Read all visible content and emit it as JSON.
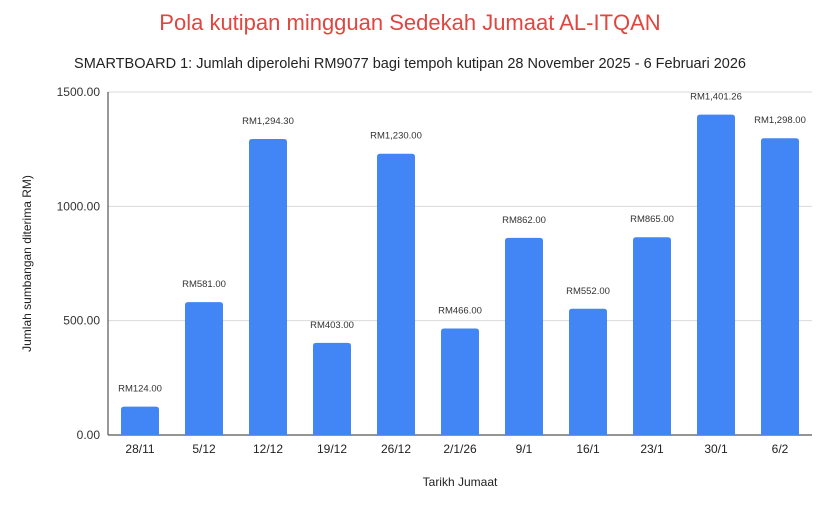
{
  "chart_data": {
    "type": "bar",
    "title": "Pola kutipan mingguan Sedekah Jumaat AL-ITQAN",
    "subtitle": "SMARTBOARD 1: Jumlah diperolehi RM9077 bagi tempoh kutipan 28 November 2025 - 6 Februari 2026",
    "xlabel": "Tarikh Jumaat",
    "ylabel": "Jumlah sumbangan diterima RM)",
    "ylim": [
      0,
      1500
    ],
    "yticks": [
      "0.00",
      "500.00",
      "1000.00",
      "1500.00"
    ],
    "grid": true,
    "bar_color": "#4285f4",
    "title_color": "#e0463f",
    "categories": [
      "28/11",
      "5/12",
      "12/12",
      "19/12",
      "26/12",
      "2/1/26",
      "9/1",
      "16/1",
      "23/1",
      "30/1",
      "6/2"
    ],
    "values": [
      124,
      581,
      1294.3,
      403,
      1230,
      466,
      862,
      552,
      865,
      1401.26,
      1298
    ],
    "data_labels": [
      "RM124.00",
      "RM581.00",
      "RM1,294.30",
      "RM403.00",
      "RM1,230.00",
      "RM466.00",
      "RM862.00",
      "RM552.00",
      "RM865.00",
      "RM1,401.26",
      "RM1,298.00"
    ]
  }
}
